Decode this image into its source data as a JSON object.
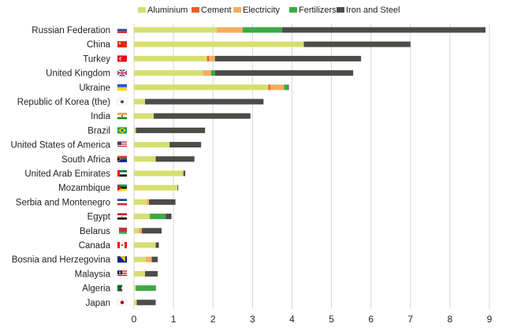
{
  "chart_data": {
    "type": "bar",
    "orientation": "horizontal",
    "stacked": true,
    "title": "",
    "xlabel": "",
    "ylabel": "",
    "xlim": [
      0,
      9
    ],
    "xticks": [
      "0",
      "1",
      "2",
      "3",
      "4",
      "5",
      "6",
      "7",
      "8",
      "9"
    ],
    "grid": true,
    "legend_position": "top",
    "categories": [
      "Russian Federation",
      "China",
      "Turkey",
      "United Kingdom",
      "Ukraine",
      "Republic of Korea (the)",
      "India",
      "Brazil",
      "United States of America",
      "South Africa",
      "United Arab Emirates",
      "Mozambique",
      "Serbia and Montenegro",
      "Egypt",
      "Belarus",
      "Canada",
      "Bosnia and Herzegovina",
      "Malaysia",
      "Algeria",
      "Japan"
    ],
    "series": [
      {
        "name": "Aluminium",
        "color": "#d6df6e",
        "values": [
          2.1,
          4.3,
          1.85,
          1.75,
          3.4,
          0.28,
          0.5,
          0.05,
          0.9,
          0.55,
          1.25,
          1.1,
          0.33,
          0.4,
          0.12,
          0.55,
          0.3,
          0.28,
          0.05,
          0.07
        ]
      },
      {
        "name": "Cement",
        "color": "#ee5d2a",
        "values": [
          0,
          0,
          0.05,
          0,
          0.05,
          0,
          0,
          0,
          0,
          0,
          0,
          0,
          0,
          0,
          0,
          0,
          0,
          0,
          0,
          0
        ]
      },
      {
        "name": "Electricity",
        "color": "#f4ad5e",
        "values": [
          0.65,
          0,
          0.15,
          0.2,
          0.35,
          0,
          0,
          0,
          0,
          0,
          0,
          0,
          0.05,
          0,
          0.08,
          0,
          0.15,
          0,
          0,
          0
        ]
      },
      {
        "name": "Fertilizers",
        "color": "#3aaa43",
        "values": [
          1.0,
          0,
          0,
          0.1,
          0.1,
          0,
          0,
          0,
          0,
          0,
          0,
          0,
          0,
          0.4,
          0,
          0,
          0,
          0,
          0.48,
          0
        ]
      },
      {
        "name": "Iron and Steel",
        "color": "#4b4d47",
        "values": [
          5.15,
          2.7,
          3.7,
          3.5,
          0.02,
          3.0,
          2.45,
          1.75,
          0.8,
          0.98,
          0.05,
          0.02,
          0.67,
          0.15,
          0.5,
          0.08,
          0.15,
          0.32,
          0.02,
          0.48
        ]
      }
    ],
    "flag_icons": [
      "russia-flag-icon",
      "china-flag-icon",
      "turkey-flag-icon",
      "uk-flag-icon",
      "ukraine-flag-icon",
      "korea-flag-icon",
      "india-flag-icon",
      "brazil-flag-icon",
      "usa-flag-icon",
      "south-africa-flag-icon",
      "uae-flag-icon",
      "mozambique-flag-icon",
      "serbia-montenegro-flag-icon",
      "egypt-flag-icon",
      "belarus-flag-icon",
      "canada-flag-icon",
      "bosnia-flag-icon",
      "malaysia-flag-icon",
      "algeria-flag-icon",
      "japan-flag-icon"
    ],
    "colors": {
      "grid": "#d7d7d7",
      "text": "#222222"
    }
  }
}
